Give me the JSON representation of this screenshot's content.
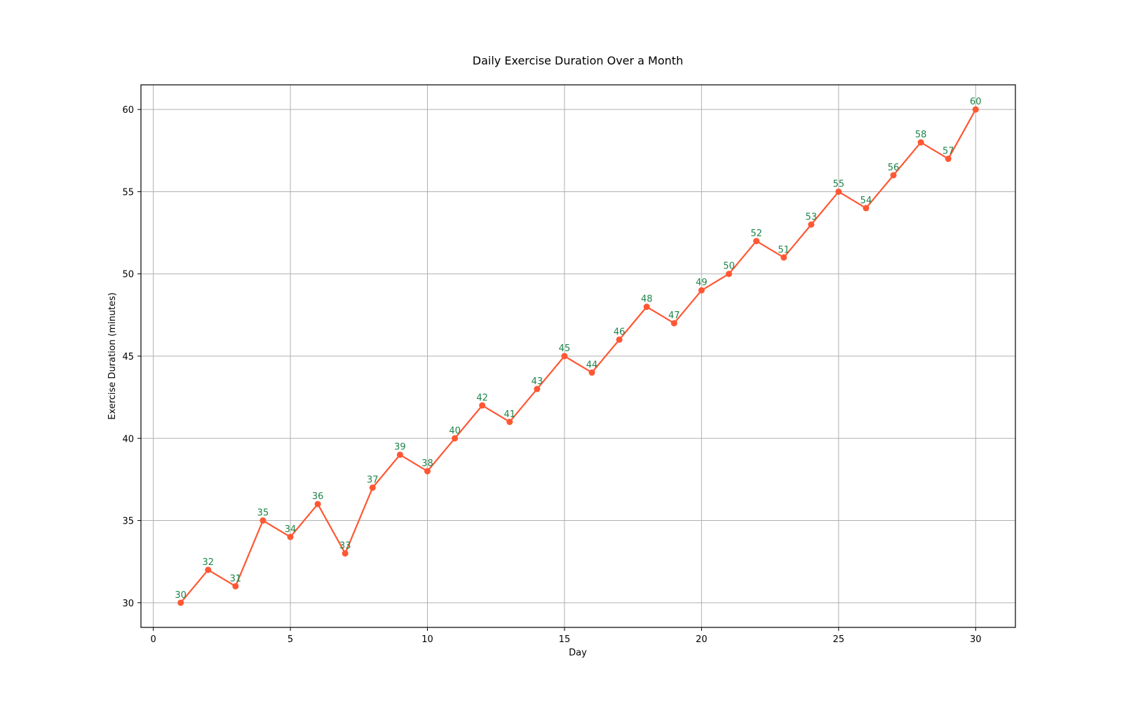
{
  "chart_data": {
    "type": "line",
    "title": "Daily Exercise Duration Over a Month",
    "xlabel": "Day",
    "ylabel": "Exercise Duration (minutes)",
    "x": [
      1,
      2,
      3,
      4,
      5,
      6,
      7,
      8,
      9,
      10,
      11,
      12,
      13,
      14,
      15,
      16,
      17,
      18,
      19,
      20,
      21,
      22,
      23,
      24,
      25,
      26,
      27,
      28,
      29,
      30
    ],
    "series": [
      {
        "values": [
          30,
          32,
          31,
          35,
          34,
          36,
          33,
          37,
          39,
          38,
          40,
          42,
          41,
          43,
          45,
          44,
          46,
          48,
          47,
          49,
          50,
          52,
          51,
          53,
          55,
          54,
          56,
          58,
          57,
          60
        ],
        "color": "#ff5733",
        "marker": "circle"
      }
    ],
    "xlim": [
      -0.45,
      31.45
    ],
    "ylim": [
      28.5,
      61.5
    ],
    "xticks": [
      0,
      5,
      10,
      15,
      20,
      25,
      30
    ],
    "yticks": [
      30,
      35,
      40,
      45,
      50,
      55,
      60
    ],
    "grid": true,
    "data_labels": true,
    "data_label_color": "#1e8449"
  }
}
